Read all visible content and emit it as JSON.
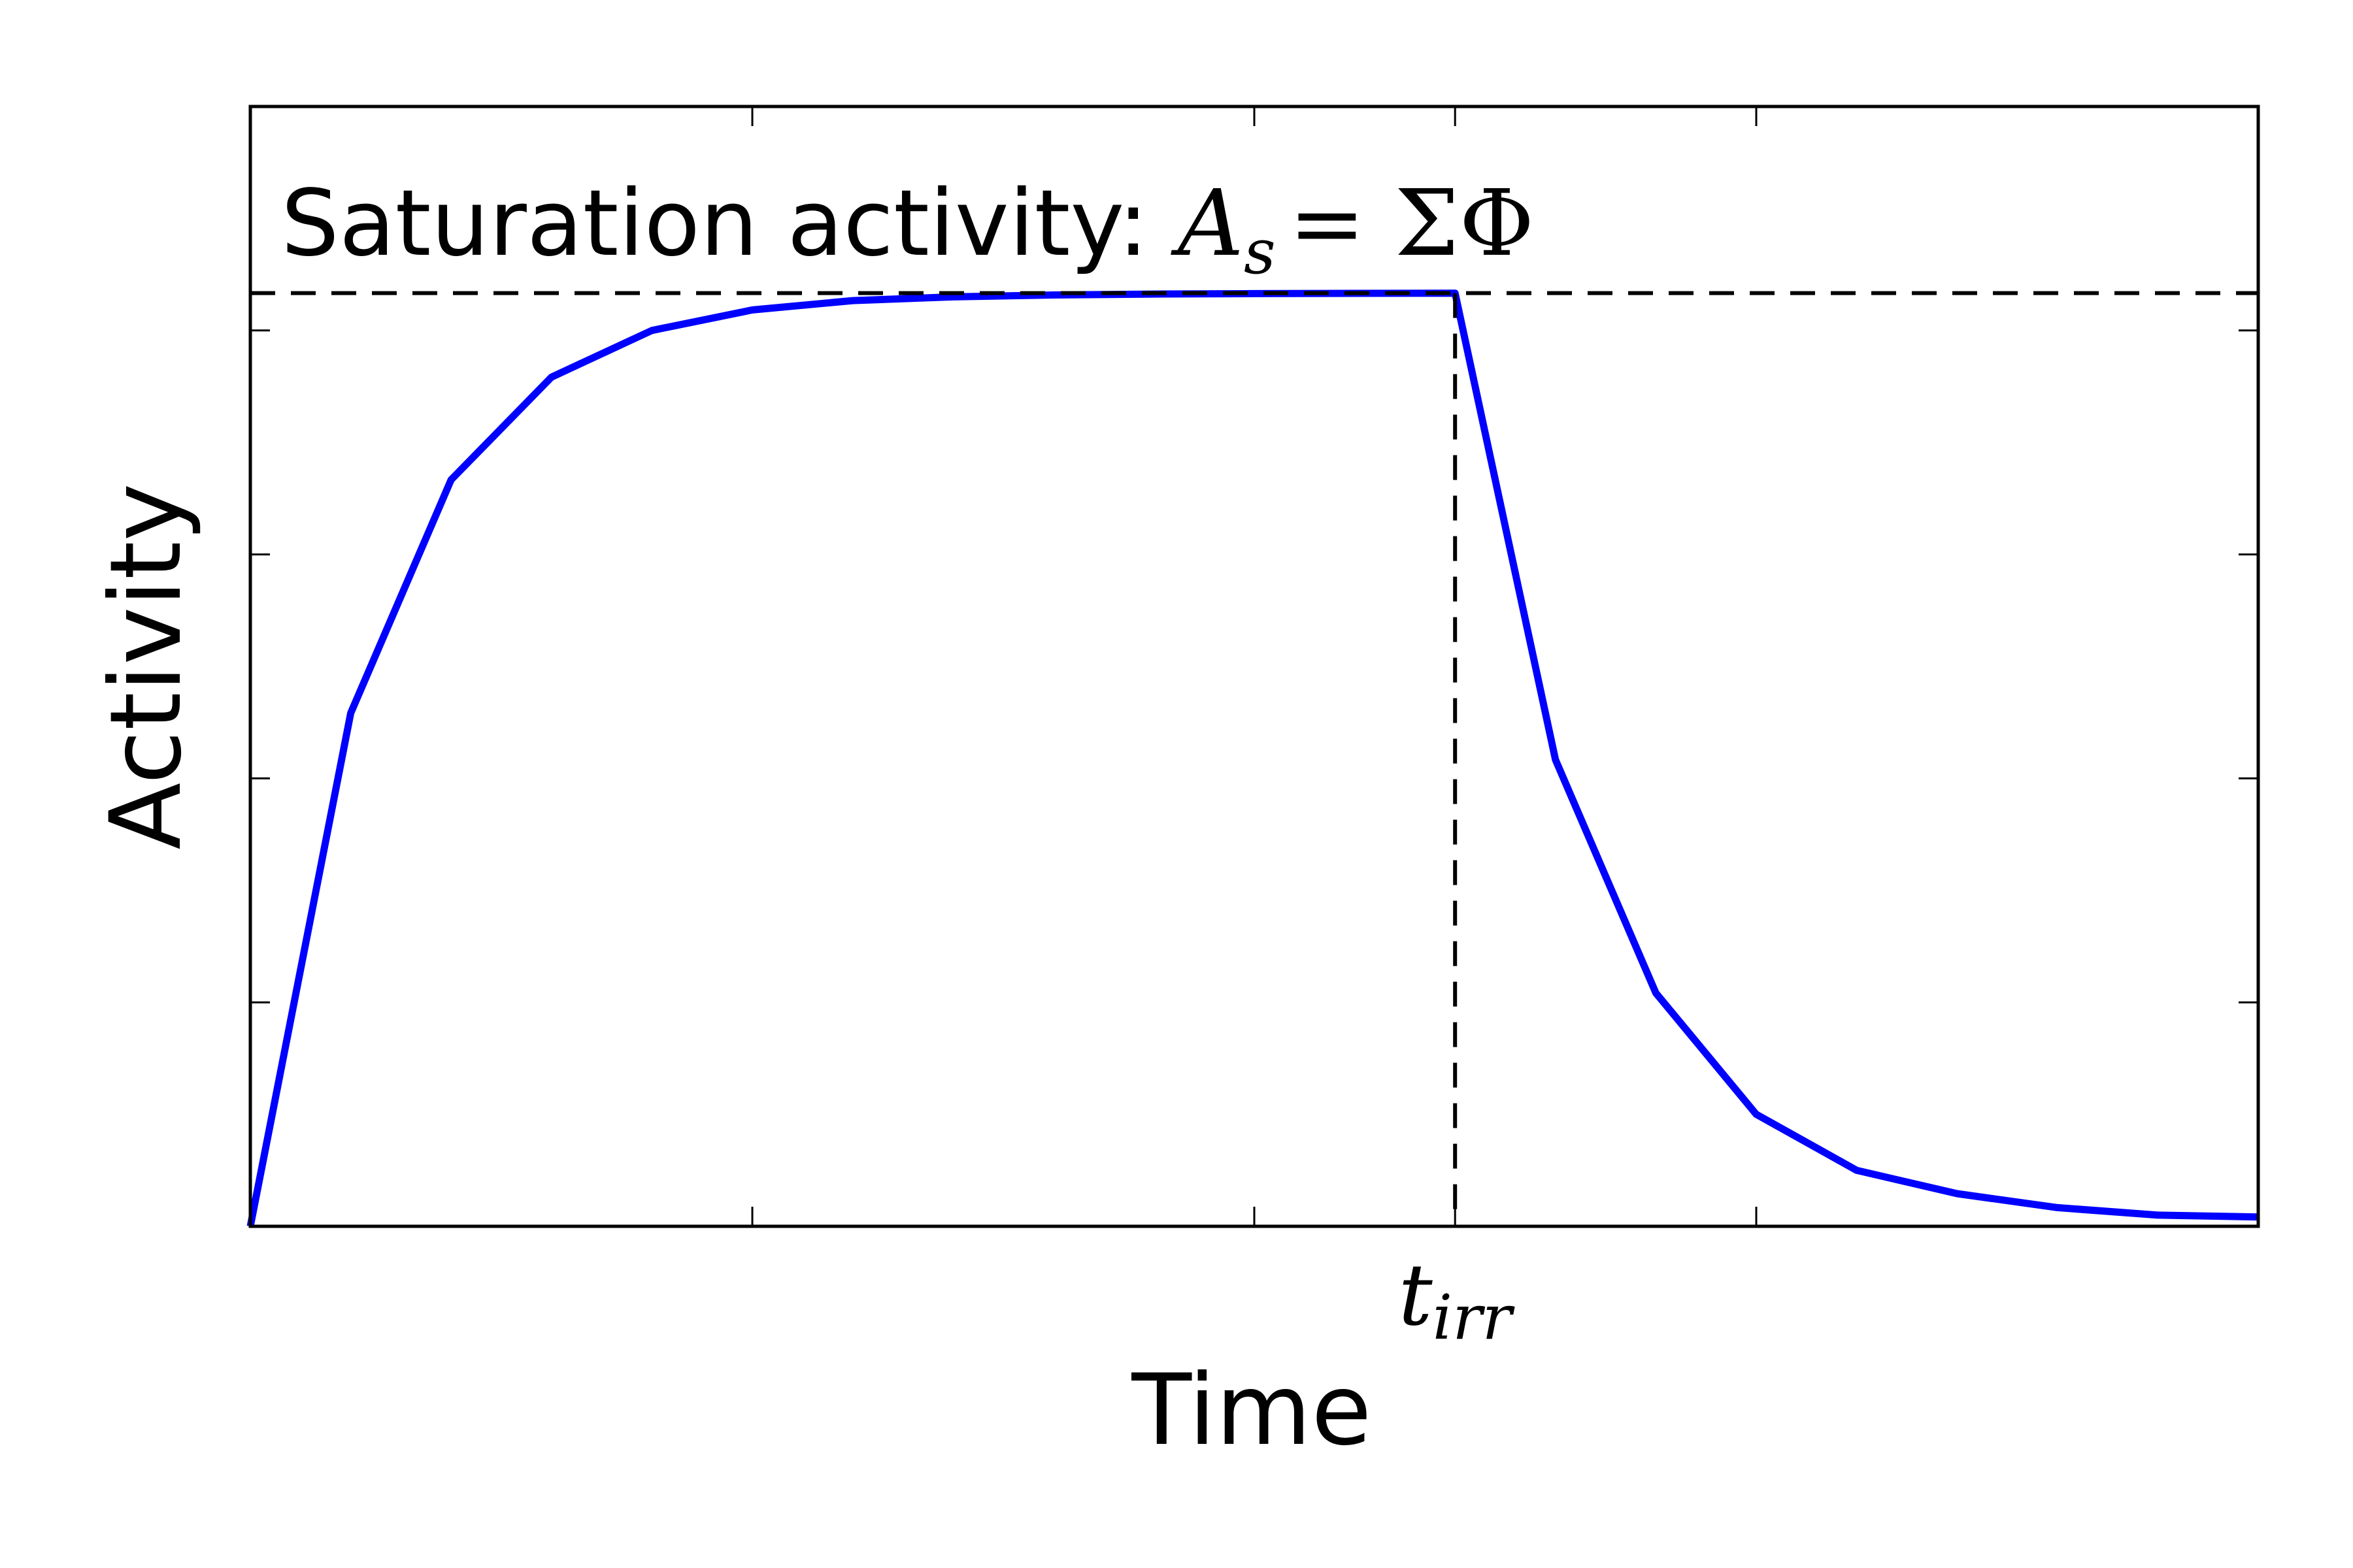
{
  "chart_data": {
    "type": "line",
    "title": "",
    "xlabel": "Time",
    "ylabel": "Activity",
    "xlim": [
      0,
      10
    ],
    "ylim": [
      0,
      1.2
    ],
    "xticks": [
      2.5,
      5,
      6,
      7.5
    ],
    "xtick_labels": [
      {
        "x": 6,
        "base": "t",
        "sub": "irr"
      }
    ],
    "yticks": [
      0.24,
      0.48,
      0.72,
      0.96
    ],
    "grid": false,
    "legend": "none",
    "annotation": {
      "text": "Saturation activity: ",
      "math": {
        "A": "A",
        "sub": "s",
        "rhs": "= ΣΦ"
      }
    },
    "saturation_level": 1.0,
    "t_irr": 6,
    "series": [
      {
        "color": "#0000ff",
        "x": [
          0,
          0.5,
          1,
          1.5,
          2,
          2.5,
          3,
          3.5,
          4,
          4.5,
          5,
          5.5,
          6,
          6.5,
          7,
          7.5,
          8,
          8.5,
          9,
          9.5,
          10
        ],
        "y": [
          0,
          0.55,
          0.8,
          0.91,
          0.96,
          0.982,
          0.992,
          0.996,
          0.998,
          0.999,
          0.9995,
          0.9998,
          1.0,
          0.5,
          0.25,
          0.12,
          0.06,
          0.035,
          0.02,
          0.012,
          0.01
        ]
      }
    ],
    "reference_lines_color": "#000000"
  }
}
